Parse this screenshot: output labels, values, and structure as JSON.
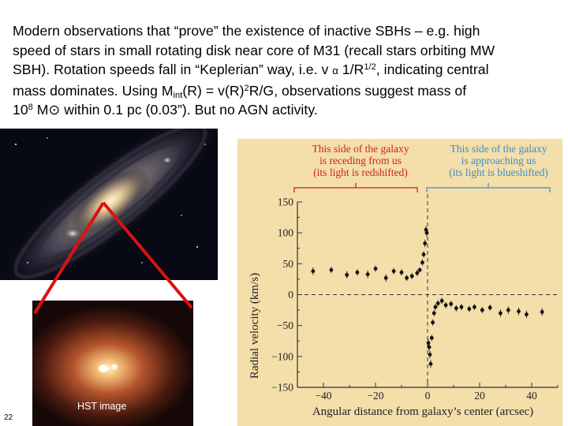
{
  "text": {
    "line1": "Modern observations that “prove” the existence of inactive SBHs – e.g. high",
    "line2": "speed of stars in small rotating disk near core of M31 (recall stars orbiting MW",
    "line3_a": "SBH).  Rotation speeds fall in “Keplerian” way, i.e. v ",
    "line3_alpha": "α",
    "line3_b": " 1/R",
    "line3_exp": "1/2",
    "line3_c": ", indicating central",
    "line4_a": "mass dominates.   Using M",
    "line4_sub": "int",
    "line4_b": "(R) = v(R)",
    "line4_sup": "2",
    "line4_c": "R/G, observations suggest mass of",
    "line5_a": "10",
    "line5_sup": "8",
    "line5_b": " M⊙ within 0.1 pc (0.03”).  But no AGN activity."
  },
  "hst_label": "HST image",
  "slide_number": "22",
  "colors": {
    "plot_background": "#f4dea9",
    "red_annotation": "#cc2222",
    "blue_annotation": "#3a8fcf",
    "connector_lines": "#dd1111"
  },
  "chart_data": {
    "type": "scatter",
    "xlabel": "Angular distance from galaxy’s center (arcsec)",
    "ylabel": "Radial velocity (km/s)",
    "xlim": [
      -50,
      50
    ],
    "ylim": [
      -150,
      150
    ],
    "x_ticks": [
      -40,
      -20,
      0,
      20,
      40
    ],
    "y_ticks": [
      150,
      100,
      50,
      0,
      -50,
      -100,
      -150
    ],
    "x_tick_labels": [
      "−40",
      "−20",
      "0",
      "20",
      "40"
    ],
    "y_tick_labels": [
      "150",
      "100",
      "50",
      "0",
      "−50",
      "−100",
      "−150"
    ],
    "grid": false,
    "reference_lines": "dashed at x = 0 and y = 0",
    "annotations": {
      "left_line1": "This side of the galaxy",
      "left_line2": "is receding from us",
      "left_line3": "(its light is redshifted)",
      "right_line1": "This side of the galaxy",
      "right_line2": "is approaching us",
      "right_line3": "(its light is blueshifted)"
    },
    "points": [
      {
        "x": -44,
        "y": 38,
        "err": 6
      },
      {
        "x": -37,
        "y": 40,
        "err": 5
      },
      {
        "x": -31,
        "y": 32,
        "err": 6
      },
      {
        "x": -27,
        "y": 36,
        "err": 5
      },
      {
        "x": -23,
        "y": 33,
        "err": 6
      },
      {
        "x": -20,
        "y": 42,
        "err": 5
      },
      {
        "x": -16,
        "y": 27,
        "err": 6
      },
      {
        "x": -13,
        "y": 38,
        "err": 5
      },
      {
        "x": -10,
        "y": 36,
        "err": 5
      },
      {
        "x": -8,
        "y": 27,
        "err": 5
      },
      {
        "x": -6,
        "y": 30,
        "err": 5
      },
      {
        "x": -4,
        "y": 35,
        "err": 5
      },
      {
        "x": -3,
        "y": 40,
        "err": 4
      },
      {
        "x": -2,
        "y": 52,
        "err": 5
      },
      {
        "x": -1.5,
        "y": 65,
        "err": 5
      },
      {
        "x": -1,
        "y": 83,
        "err": 6
      },
      {
        "x": -0.6,
        "y": 105,
        "err": 6
      },
      {
        "x": -0.3,
        "y": 100,
        "err": 6
      },
      {
        "x": 0.3,
        "y": -78,
        "err": 6
      },
      {
        "x": 0.6,
        "y": -85,
        "err": 6
      },
      {
        "x": 0.9,
        "y": -97,
        "err": 6
      },
      {
        "x": 1.2,
        "y": -112,
        "err": 6
      },
      {
        "x": 1.6,
        "y": -70,
        "err": 5
      },
      {
        "x": 2,
        "y": -45,
        "err": 5
      },
      {
        "x": 2.5,
        "y": -30,
        "err": 5
      },
      {
        "x": 3,
        "y": -20,
        "err": 5
      },
      {
        "x": 4,
        "y": -14,
        "err": 5
      },
      {
        "x": 5.5,
        "y": -10,
        "err": 5
      },
      {
        "x": 7,
        "y": -17,
        "err": 5
      },
      {
        "x": 9,
        "y": -15,
        "err": 5
      },
      {
        "x": 11,
        "y": -22,
        "err": 5
      },
      {
        "x": 13,
        "y": -20,
        "err": 5
      },
      {
        "x": 16,
        "y": -23,
        "err": 5
      },
      {
        "x": 18,
        "y": -20,
        "err": 5
      },
      {
        "x": 21,
        "y": -25,
        "err": 5
      },
      {
        "x": 24,
        "y": -21,
        "err": 5
      },
      {
        "x": 28,
        "y": -30,
        "err": 6
      },
      {
        "x": 31,
        "y": -25,
        "err": 6
      },
      {
        "x": 35,
        "y": -27,
        "err": 6
      },
      {
        "x": 38,
        "y": -32,
        "err": 6
      },
      {
        "x": 44,
        "y": -28,
        "err": 6
      }
    ]
  }
}
